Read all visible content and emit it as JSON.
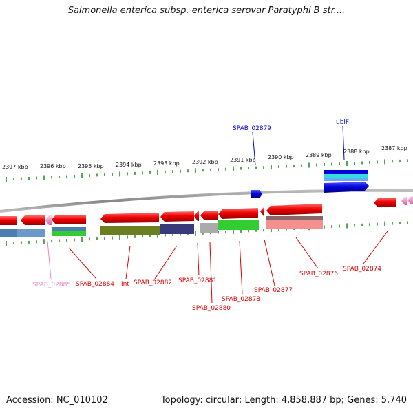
{
  "title": "Salmonella enterica subsp. enterica serovar Paratyphi B str....",
  "footer": {
    "accession": "Accession: NC_010102",
    "stats": "Topology: circular; Length: 4,858,887 bp; Genes: 5,740"
  },
  "scale_labels": [
    "2397 kbp",
    "2396 kbp",
    "2395 kbp",
    "2394 kbp",
    "2393 kbp",
    "2392 kbp",
    "2391 kbp",
    "2390 kbp",
    "2389 kbp",
    "2388 kbp",
    "2387 kbp"
  ],
  "gene_labels": [
    {
      "text": "SPAB_02879",
      "color": "#0000cc"
    },
    {
      "text": "ubiF",
      "color": "#0000cc"
    },
    {
      "text": "SPAB_02885",
      "color": "#ee88c8"
    },
    {
      "text": "SPAB_02884",
      "color": "#dd0000"
    },
    {
      "text": "Int",
      "color": "#dd0000"
    },
    {
      "text": "SPAB_02882",
      "color": "#dd0000"
    },
    {
      "text": "SPAB_02881",
      "color": "#dd0000"
    },
    {
      "text": "SPAB_02880",
      "color": "#dd0000"
    },
    {
      "text": "SPAB_02878",
      "color": "#dd0000"
    },
    {
      "text": "SPAB_02877",
      "color": "#dd0000"
    },
    {
      "text": "SPAB_02876",
      "color": "#dd0000"
    },
    {
      "text": "SPAB_02874",
      "color": "#dd0000"
    }
  ],
  "colors": {
    "backbone": "#888888",
    "tick_green": "#1a8a1a",
    "gene_reverse": "#ee0000",
    "gene_forward": "#0000dd",
    "gene_pseudo": "#f48cc8",
    "label_blue": "#0000cc",
    "label_red": "#dd0000"
  }
}
